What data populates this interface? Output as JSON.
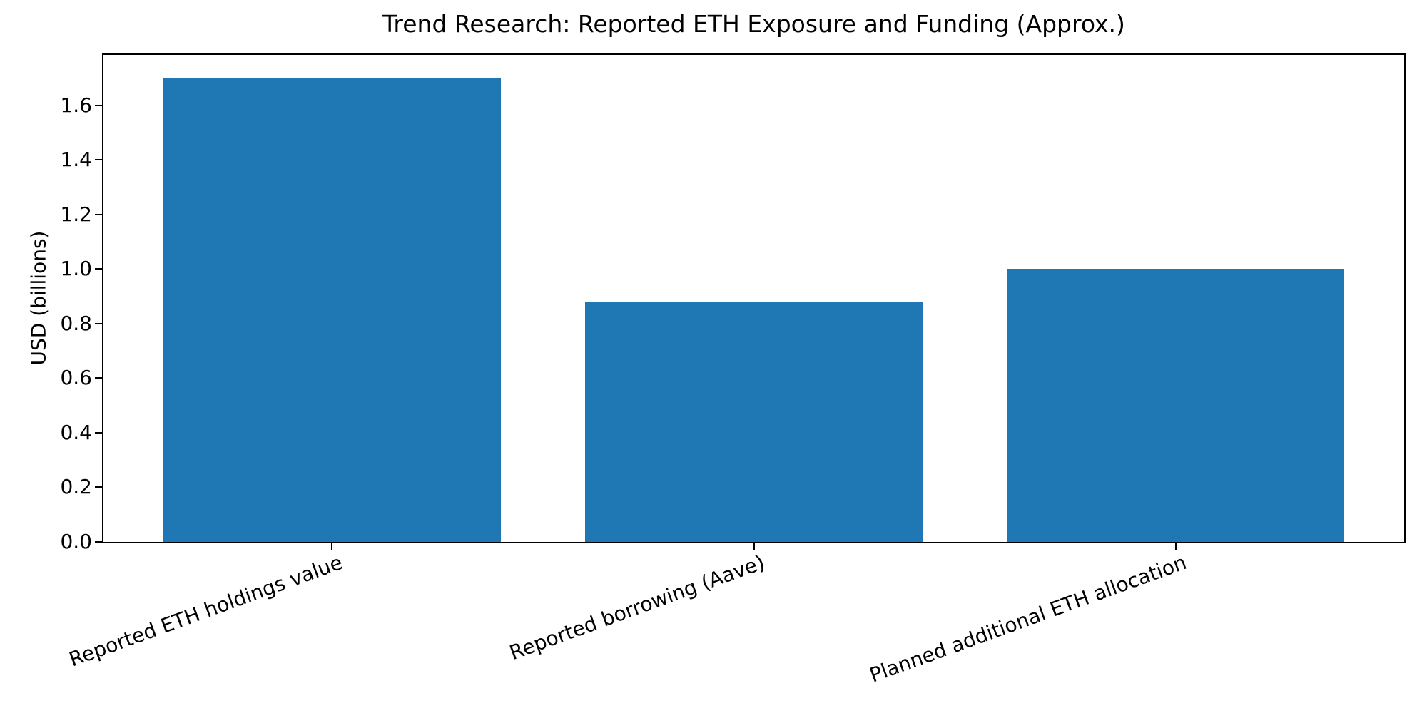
{
  "chart_data": {
    "type": "bar",
    "title": "Trend Research: Reported ETH Exposure and Funding (Approx.)",
    "categories": [
      "Reported ETH holdings value",
      "Reported borrowing (Aave)",
      "Planned additional ETH allocation"
    ],
    "values": [
      1.7,
      0.88,
      1.0
    ],
    "xlabel": "",
    "ylabel": "USD (billions)",
    "ylim": [
      0,
      1.785
    ],
    "yticks": [
      0.0,
      0.2,
      0.4,
      0.6,
      0.8,
      1.0,
      1.2,
      1.4,
      1.6
    ],
    "ytick_format_decimals": 1,
    "bar_color": "#1f77b4",
    "grid": false,
    "legend": "none",
    "x_tick_rotation_deg": 20
  }
}
